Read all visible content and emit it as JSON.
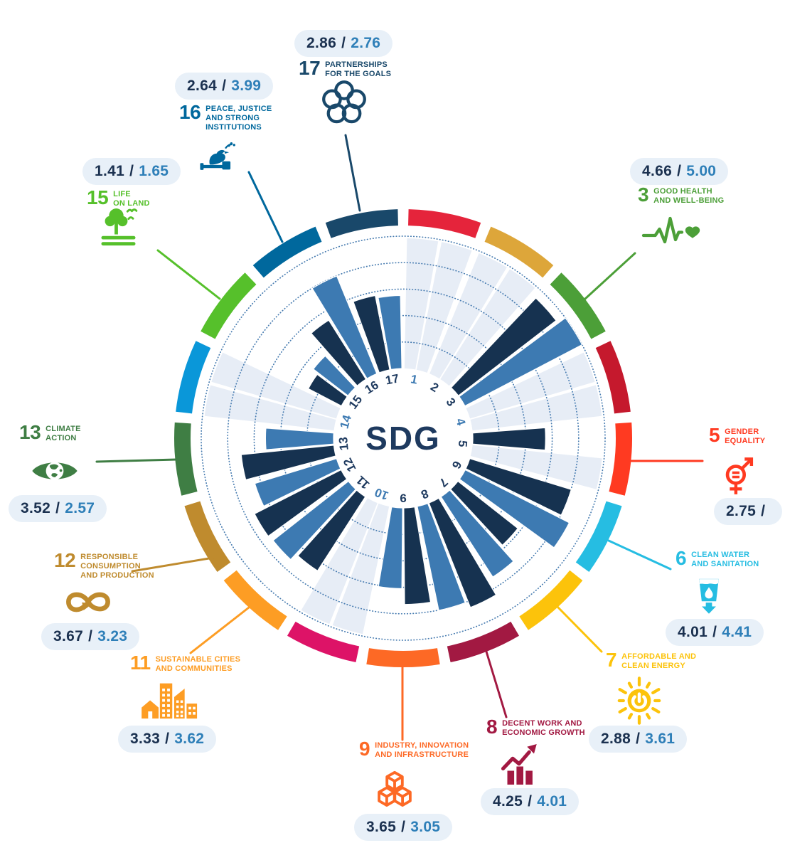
{
  "center": {
    "label": "SDG"
  },
  "colors": {
    "bar_primary": "#163250",
    "bar_secondary": "#3d7ab2",
    "wedge_missing": "#e7edf6",
    "grid_dot": "#3f76ad",
    "pill_bg": "#e8f0f8",
    "value_primary_text": "#1b3150",
    "value_secondary_text": "#2e7fb8",
    "number_default": "#1e3a5f",
    "number_highlight": "#3d7ab2",
    "center_text": "#1e3a5f"
  },
  "chart_data": {
    "type": "radial-bar",
    "title": "SDG",
    "scale": {
      "min": 0,
      "max": 5,
      "gridlines": [
        1,
        2,
        3,
        4,
        5
      ]
    },
    "series": [
      {
        "name": "value_1",
        "color": "#163250"
      },
      {
        "name": "value_2",
        "color": "#3d7ab2"
      }
    ],
    "goals": [
      {
        "number": 1,
        "ring_color": "#E5243B",
        "number_highlighted": true,
        "value_1": null,
        "value_2": null
      },
      {
        "number": 2,
        "ring_color": "#DDA63A",
        "number_highlighted": false,
        "value_1": null,
        "value_2": null
      },
      {
        "number": 3,
        "ring_color": "#4C9F38",
        "number_highlighted": false,
        "value_1": 4.66,
        "value_2": 5.0,
        "value_1_text": "4.66",
        "value_2_text": "5.00",
        "icon": "heartbeat-heart-icon",
        "title_lines": [
          "GOOD HEALTH",
          "AND WELL-BEING"
        ]
      },
      {
        "number": 4,
        "ring_color": "#C5192D",
        "number_highlighted": true,
        "value_1": null,
        "value_2": null
      },
      {
        "number": 5,
        "ring_color": "#FF3A21",
        "number_highlighted": false,
        "value_1": 2.75,
        "value_2": null,
        "value_1_text": "2.75",
        "value_2_text": "",
        "icon": "gender-equality-icon",
        "title_lines": [
          "GENDER",
          "EQUALITY"
        ]
      },
      {
        "number": 6,
        "ring_color": "#26BDE2",
        "number_highlighted": false,
        "value_1": 4.01,
        "value_2": 4.41,
        "value_1_text": "4.01",
        "value_2_text": "4.41",
        "icon": "water-glass-icon",
        "title_lines": [
          "CLEAN WATER",
          "AND SANITATION"
        ]
      },
      {
        "number": 7,
        "ring_color": "#FCC30B",
        "number_highlighted": false,
        "value_1": 2.88,
        "value_2": 3.61,
        "value_1_text": "2.88",
        "value_2_text": "3.61",
        "icon": "sun-power-icon",
        "title_lines": [
          "AFFORDABLE AND",
          "CLEAN ENERGY"
        ]
      },
      {
        "number": 8,
        "ring_color": "#A21942",
        "number_highlighted": false,
        "value_1": 4.25,
        "value_2": 4.01,
        "value_1_text": "4.25",
        "value_2_text": "4.01",
        "icon": "growth-chart-icon",
        "title_lines": [
          "DECENT WORK AND",
          "ECONOMIC GROWTH"
        ]
      },
      {
        "number": 9,
        "ring_color": "#FD6925",
        "number_highlighted": false,
        "value_1": 3.65,
        "value_2": 3.05,
        "value_1_text": "3.65",
        "value_2_text": "3.05",
        "icon": "cubes-icon",
        "title_lines": [
          "INDUSTRY, INNOVATION",
          "AND INFRASTRUCTURE"
        ]
      },
      {
        "number": 10,
        "ring_color": "#DD1367",
        "number_highlighted": true,
        "value_1": null,
        "value_2": null
      },
      {
        "number": 11,
        "ring_color": "#FD9D24",
        "number_highlighted": false,
        "value_1": 3.33,
        "value_2": 3.62,
        "value_1_text": "3.33",
        "value_2_text": "3.62",
        "icon": "city-buildings-icon",
        "title_lines": [
          "SUSTAINABLE CITIES",
          "AND COMMUNITIES"
        ]
      },
      {
        "number": 12,
        "ring_color": "#BF8B2E",
        "number_highlighted": false,
        "value_1": 3.67,
        "value_2": 3.23,
        "value_1_text": "3.67",
        "value_2_text": "3.23",
        "icon": "infinity-arrow-icon",
        "title_lines": [
          "RESPONSIBLE",
          "CONSUMPTION",
          "AND PRODUCTION"
        ]
      },
      {
        "number": 13,
        "ring_color": "#3F7E44",
        "number_highlighted": false,
        "value_1": 3.52,
        "value_2": 2.57,
        "value_1_text": "3.52",
        "value_2_text": "2.57",
        "icon": "eye-globe-icon",
        "title_lines": [
          "CLIMATE",
          "ACTION"
        ]
      },
      {
        "number": 14,
        "ring_color": "#0A97D9",
        "number_highlighted": true,
        "value_1": null,
        "value_2": null
      },
      {
        "number": 15,
        "ring_color": "#56C02B",
        "number_highlighted": false,
        "value_1": 1.41,
        "value_2": 1.65,
        "value_1_text": "1.41",
        "value_2_text": "1.65",
        "icon": "tree-birds-icon",
        "title_lines": [
          "LIFE",
          "ON LAND"
        ]
      },
      {
        "number": 16,
        "ring_color": "#00689D",
        "number_highlighted": false,
        "value_1": 2.64,
        "value_2": 3.99,
        "value_1_text": "2.64",
        "value_2_text": "3.99",
        "icon": "dove-gavel-icon",
        "title_lines": [
          "PEACE, JUSTICE",
          "AND STRONG",
          "INSTITUTIONS"
        ]
      },
      {
        "number": 17,
        "ring_color": "#19486A",
        "number_highlighted": false,
        "value_1": 2.86,
        "value_2": 2.76,
        "value_1_text": "2.86",
        "value_2_text": "2.76",
        "icon": "interlocking-circles-icon",
        "title_lines": [
          "PARTNERSHIPS",
          "FOR THE GOALS"
        ]
      }
    ]
  }
}
